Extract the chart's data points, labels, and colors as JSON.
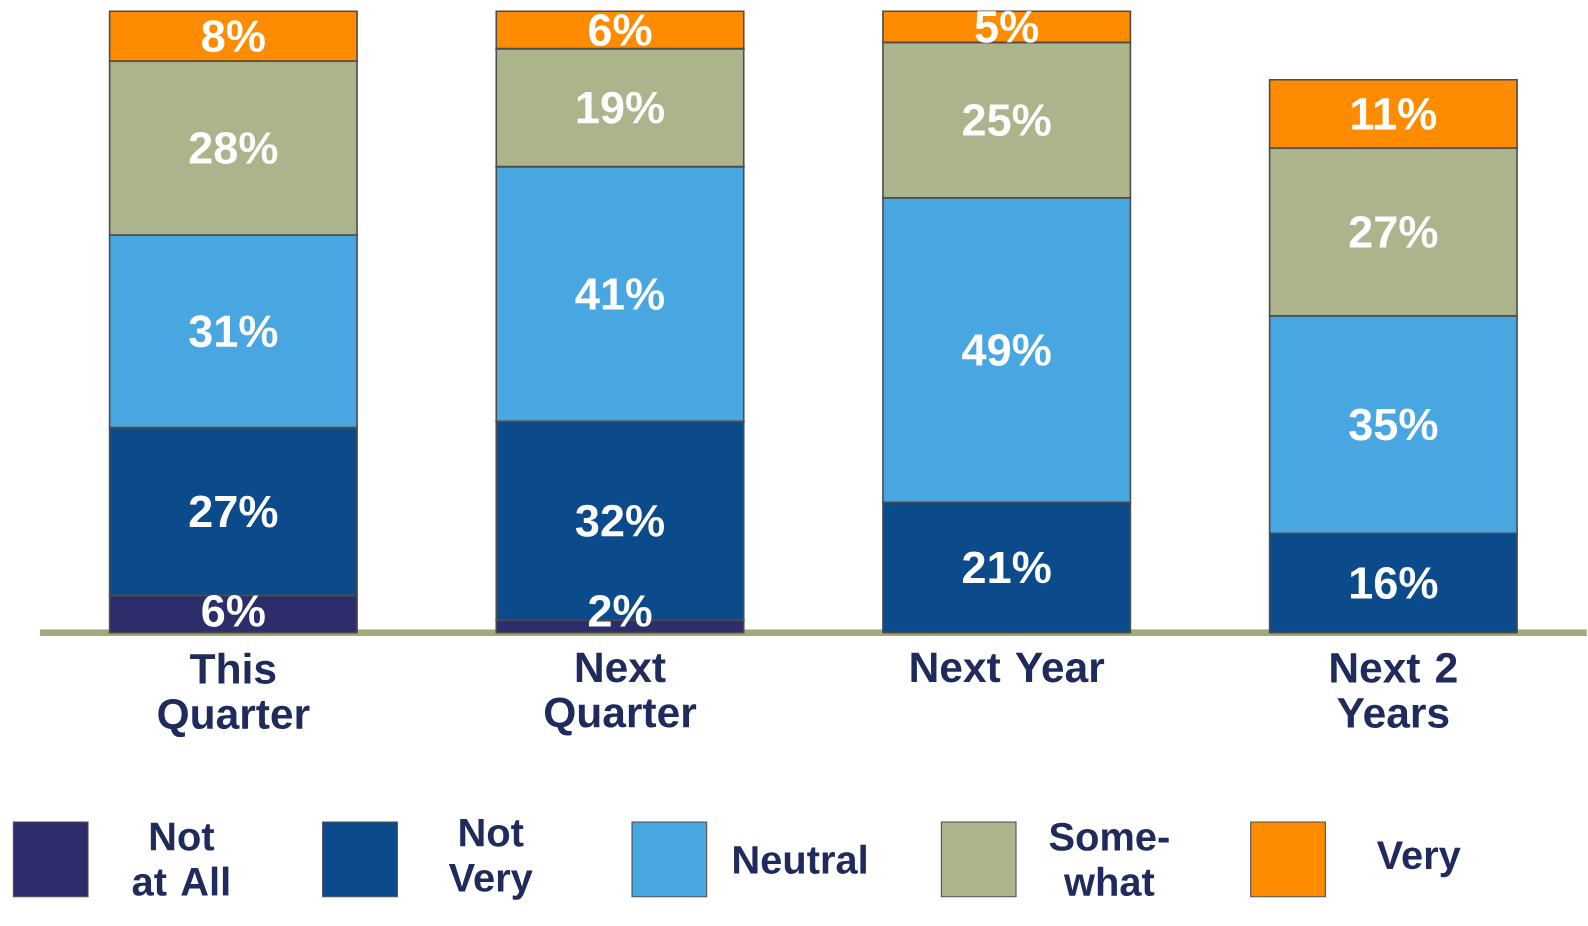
{
  "chart_data": {
    "type": "bar",
    "stacked": true,
    "legend": "bottom",
    "categories": [
      "This Quarter",
      "Next Quarter",
      "Next Year",
      "Next 2 Years"
    ],
    "series": [
      {
        "name": "Not at All",
        "color": "#2e2d6b",
        "values": [
          6,
          2,
          null,
          null
        ],
        "value_labels": [
          "6%",
          "2%",
          null,
          null
        ]
      },
      {
        "name": "Not Very",
        "color": "#0b4b8c",
        "values": [
          27,
          32,
          21,
          16
        ],
        "value_labels": [
          "27%",
          "32%",
          "21%",
          "16%"
        ]
      },
      {
        "name": "Neutral",
        "color": "#48a7e0",
        "values": [
          31,
          41,
          49,
          35
        ],
        "value_labels": [
          "31%",
          "41%",
          "49%",
          "35%"
        ]
      },
      {
        "name": "Some-what",
        "color": "#abb48b",
        "values": [
          28,
          19,
          25,
          27
        ],
        "value_labels": [
          "28%",
          "19%",
          "25%",
          "27%"
        ]
      },
      {
        "name": "Very",
        "color": "#ff8c00",
        "values": [
          8,
          6,
          5,
          11
        ],
        "value_labels": [
          "8%",
          "6%",
          "5%",
          "11%"
        ]
      }
    ]
  }
}
